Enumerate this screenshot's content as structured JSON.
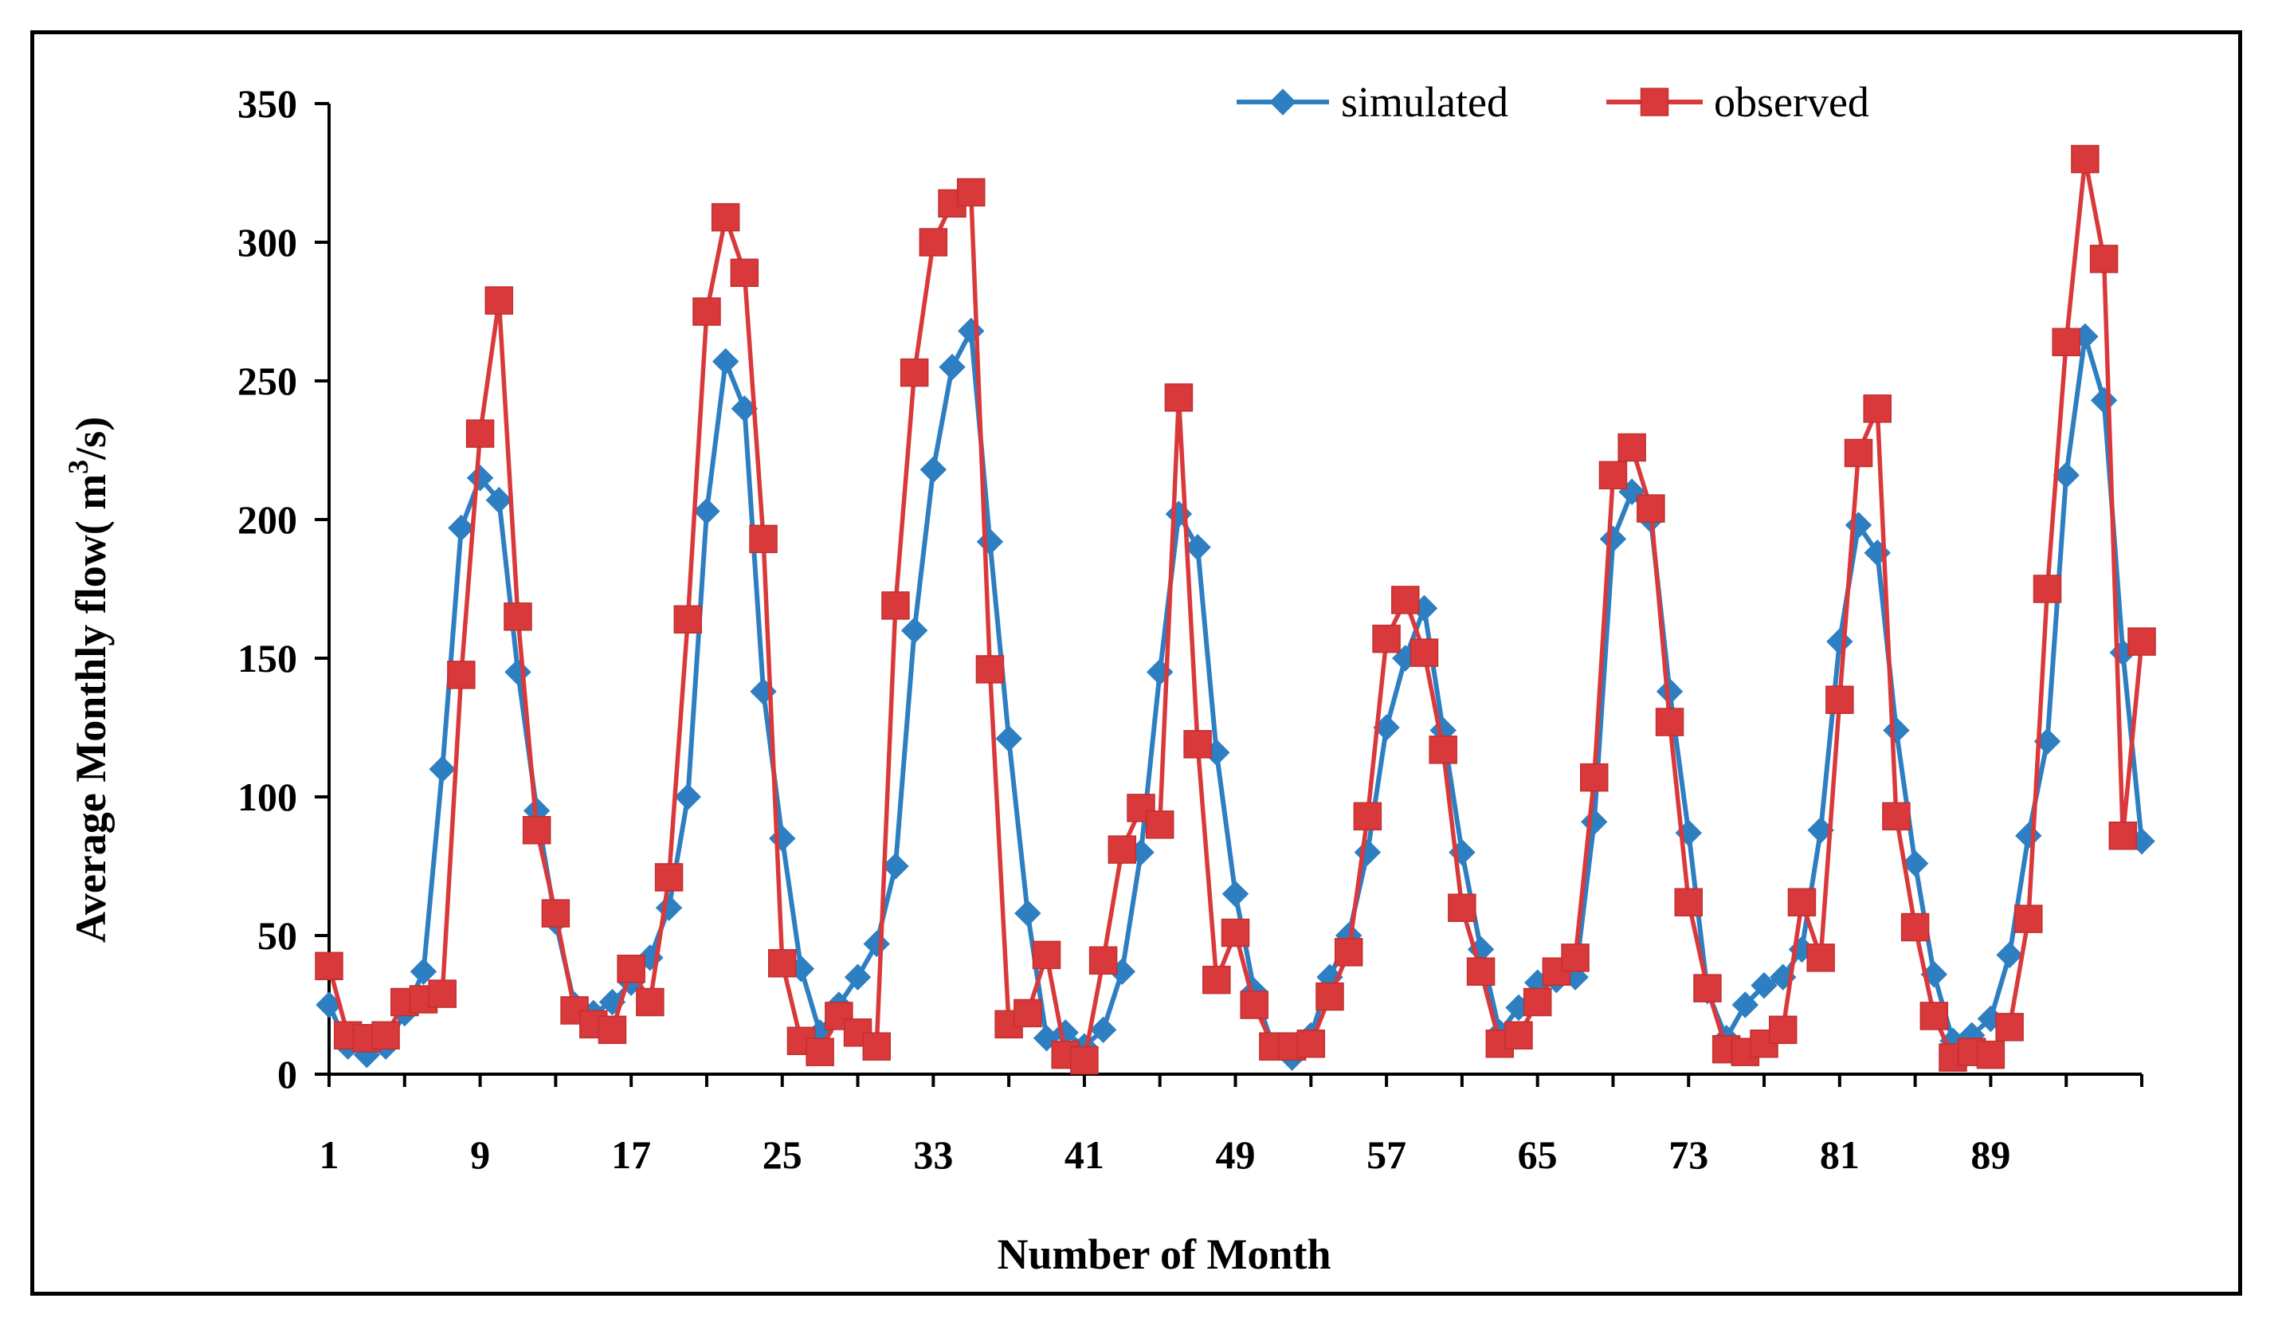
{
  "chart_data": {
    "type": "line",
    "title": "",
    "xlabel": "Number of Month",
    "ylabel_prefix": "Average Monthly flow(  m",
    "ylabel_sup": "3",
    "ylabel_suffix": "/s)",
    "ylim": [
      0,
      350
    ],
    "xlim": [
      1,
      97
    ],
    "yticks": [
      0,
      50,
      100,
      150,
      200,
      250,
      300,
      350
    ],
    "xticks": [
      1,
      9,
      17,
      25,
      33,
      41,
      49,
      57,
      65,
      73,
      81,
      89
    ],
    "legend_position": "top-right",
    "grid": false,
    "series": [
      {
        "name": "simulated",
        "color": "#2E7EC2",
        "marker": "diamond",
        "values": [
          25,
          10,
          7,
          10,
          22,
          37,
          110,
          197,
          215,
          207,
          145,
          95,
          55,
          25,
          22,
          26,
          33,
          42,
          60,
          100,
          203,
          257,
          240,
          138,
          85,
          38,
          15,
          25,
          35,
          47,
          75,
          160,
          218,
          255,
          268,
          192,
          121,
          58,
          13,
          15,
          10,
          16,
          37,
          80,
          145,
          202,
          190,
          116,
          65,
          30,
          10,
          6,
          14,
          35,
          50,
          80,
          125,
          150,
          168,
          124,
          80,
          45,
          15,
          24,
          33,
          34,
          35,
          91,
          193,
          210,
          200,
          138,
          87,
          30,
          13,
          25,
          32,
          35,
          45,
          88,
          156,
          198,
          188,
          124,
          76,
          36,
          12,
          14,
          20,
          43,
          86,
          120,
          216,
          266,
          243,
          152,
          84
        ]
      },
      {
        "name": "observed",
        "color": "#D9393B",
        "marker": "square",
        "values": [
          39,
          14,
          13,
          14,
          26,
          27,
          29,
          144,
          231,
          279,
          165,
          88,
          58,
          23,
          18,
          16,
          38,
          26,
          71,
          164,
          275,
          309,
          289,
          193,
          40,
          12,
          8,
          21,
          15,
          10,
          169,
          253,
          300,
          314,
          318,
          146,
          18,
          22,
          43,
          7,
          5,
          41,
          81,
          96,
          90,
          244,
          119,
          34,
          51,
          25,
          10,
          10,
          11,
          28,
          44,
          93,
          157,
          171,
          152,
          117,
          60,
          37,
          11,
          14,
          26,
          37,
          42,
          107,
          216,
          226,
          204,
          127,
          62,
          31,
          9,
          8,
          11,
          16,
          62,
          42,
          135,
          224,
          240,
          93,
          53,
          21,
          6,
          8,
          7,
          17,
          56,
          175,
          264,
          330,
          294,
          86,
          156
        ]
      }
    ]
  }
}
